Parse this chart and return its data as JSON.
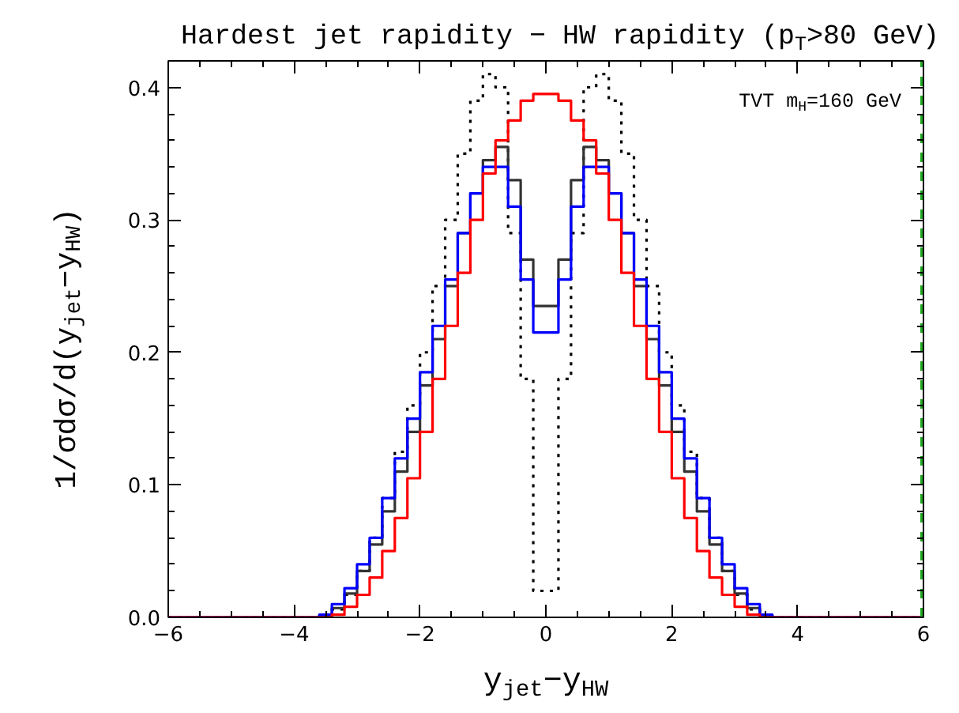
{
  "chart_data": {
    "type": "histogram",
    "title": "Hardest jet rapidity − HW rapidity (p$_{T}$>80 GeV)",
    "xlabel": "y$_{jet}$−y$_{HW}$",
    "ylabel": "1/σdσ/d(y$_{jet}$−y$_{HW}$)",
    "annotations": [
      "TVT m$_{H}$=160 GeV"
    ],
    "bins": [
      -6.0,
      -5.8,
      -5.6,
      -5.4,
      -5.2,
      -5.0,
      -4.8,
      -4.6,
      -4.4,
      -4.2,
      -4.0,
      -3.8,
      -3.6,
      -3.4,
      -3.2,
      -3.0,
      -2.8,
      -2.6,
      -2.4,
      -2.2,
      -2.0,
      -1.8,
      -1.6,
      -1.4,
      -1.2,
      -1.0,
      -0.8,
      -0.6,
      -0.4,
      -0.2,
      0.0,
      0.2,
      0.4,
      0.6,
      0.8,
      1.0,
      1.2,
      1.4,
      1.6,
      1.8,
      2.0,
      2.2,
      2.4,
      2.6,
      2.8,
      3.0,
      3.2,
      3.4,
      3.6,
      3.8,
      4.0,
      4.2,
      4.4,
      4.6,
      4.8,
      5.0,
      5.2,
      5.4,
      5.6,
      5.8,
      6.0
    ],
    "series": [
      {
        "color": "#000000",
        "line_style": "dotted",
        "values": [
          0,
          0,
          0,
          0,
          0,
          0,
          0,
          0,
          0,
          0,
          0,
          0,
          0.001,
          0.006,
          0.017,
          0.035,
          0.06,
          0.09,
          0.125,
          0.16,
          0.2,
          0.25,
          0.3,
          0.35,
          0.39,
          0.41,
          0.4,
          0.29,
          0.18,
          0.02,
          0.02,
          0.18,
          0.29,
          0.4,
          0.41,
          0.39,
          0.35,
          0.3,
          0.25,
          0.2,
          0.16,
          0.125,
          0.09,
          0.06,
          0.035,
          0.017,
          0.006,
          0.001,
          0,
          0,
          0,
          0,
          0,
          0,
          0,
          0,
          0,
          0,
          0,
          0
        ]
      },
      {
        "color": "#333333",
        "line_style": "solid",
        "values": [
          0,
          0,
          0,
          0,
          0,
          0,
          0,
          0,
          0,
          0,
          0,
          0,
          0.001,
          0.007,
          0.018,
          0.035,
          0.055,
          0.08,
          0.11,
          0.14,
          0.175,
          0.21,
          0.25,
          0.29,
          0.32,
          0.345,
          0.355,
          0.33,
          0.27,
          0.235,
          0.235,
          0.27,
          0.33,
          0.355,
          0.345,
          0.32,
          0.29,
          0.25,
          0.21,
          0.175,
          0.14,
          0.11,
          0.08,
          0.055,
          0.035,
          0.018,
          0.007,
          0.001,
          0,
          0,
          0,
          0,
          0,
          0,
          0,
          0,
          0,
          0,
          0,
          0
        ]
      },
      {
        "color": "#0000ff",
        "line_style": "solid",
        "values": [
          0,
          0,
          0,
          0,
          0,
          0,
          0,
          0,
          0,
          0,
          0,
          0,
          0.002,
          0.01,
          0.022,
          0.04,
          0.06,
          0.09,
          0.12,
          0.15,
          0.185,
          0.22,
          0.255,
          0.29,
          0.32,
          0.34,
          0.34,
          0.31,
          0.255,
          0.215,
          0.215,
          0.255,
          0.31,
          0.34,
          0.34,
          0.32,
          0.29,
          0.255,
          0.22,
          0.185,
          0.15,
          0.12,
          0.09,
          0.06,
          0.04,
          0.022,
          0.01,
          0.002,
          0,
          0,
          0,
          0,
          0,
          0,
          0,
          0,
          0,
          0,
          0,
          0
        ]
      },
      {
        "color": "#ff0000",
        "line_style": "solid",
        "values": [
          0,
          0,
          0,
          0,
          0,
          0,
          0,
          0,
          0,
          0,
          0,
          0,
          0,
          0.002,
          0.008,
          0.017,
          0.03,
          0.05,
          0.075,
          0.105,
          0.14,
          0.18,
          0.22,
          0.26,
          0.3,
          0.335,
          0.36,
          0.375,
          0.39,
          0.395,
          0.395,
          0.39,
          0.375,
          0.36,
          0.335,
          0.3,
          0.26,
          0.22,
          0.18,
          0.14,
          0.105,
          0.075,
          0.05,
          0.03,
          0.017,
          0.008,
          0.002,
          0,
          0,
          0,
          0,
          0,
          0,
          0,
          0,
          0,
          0,
          0,
          0,
          0
        ]
      }
    ],
    "ref_lines": [
      {
        "axis": "x",
        "value": 6,
        "label": null,
        "color": "#22aa22",
        "line_style": "dashed"
      }
    ],
    "xlim": [
      -6,
      6
    ],
    "xticks": [
      -6,
      -4,
      -2,
      0,
      2,
      4,
      6
    ],
    "ylim": [
      0,
      0.42
    ],
    "yticks": [
      {
        "value": 0,
        "label": "0.0"
      },
      0.1,
      0.2,
      0.3,
      0.4
    ],
    "grid": false
  }
}
